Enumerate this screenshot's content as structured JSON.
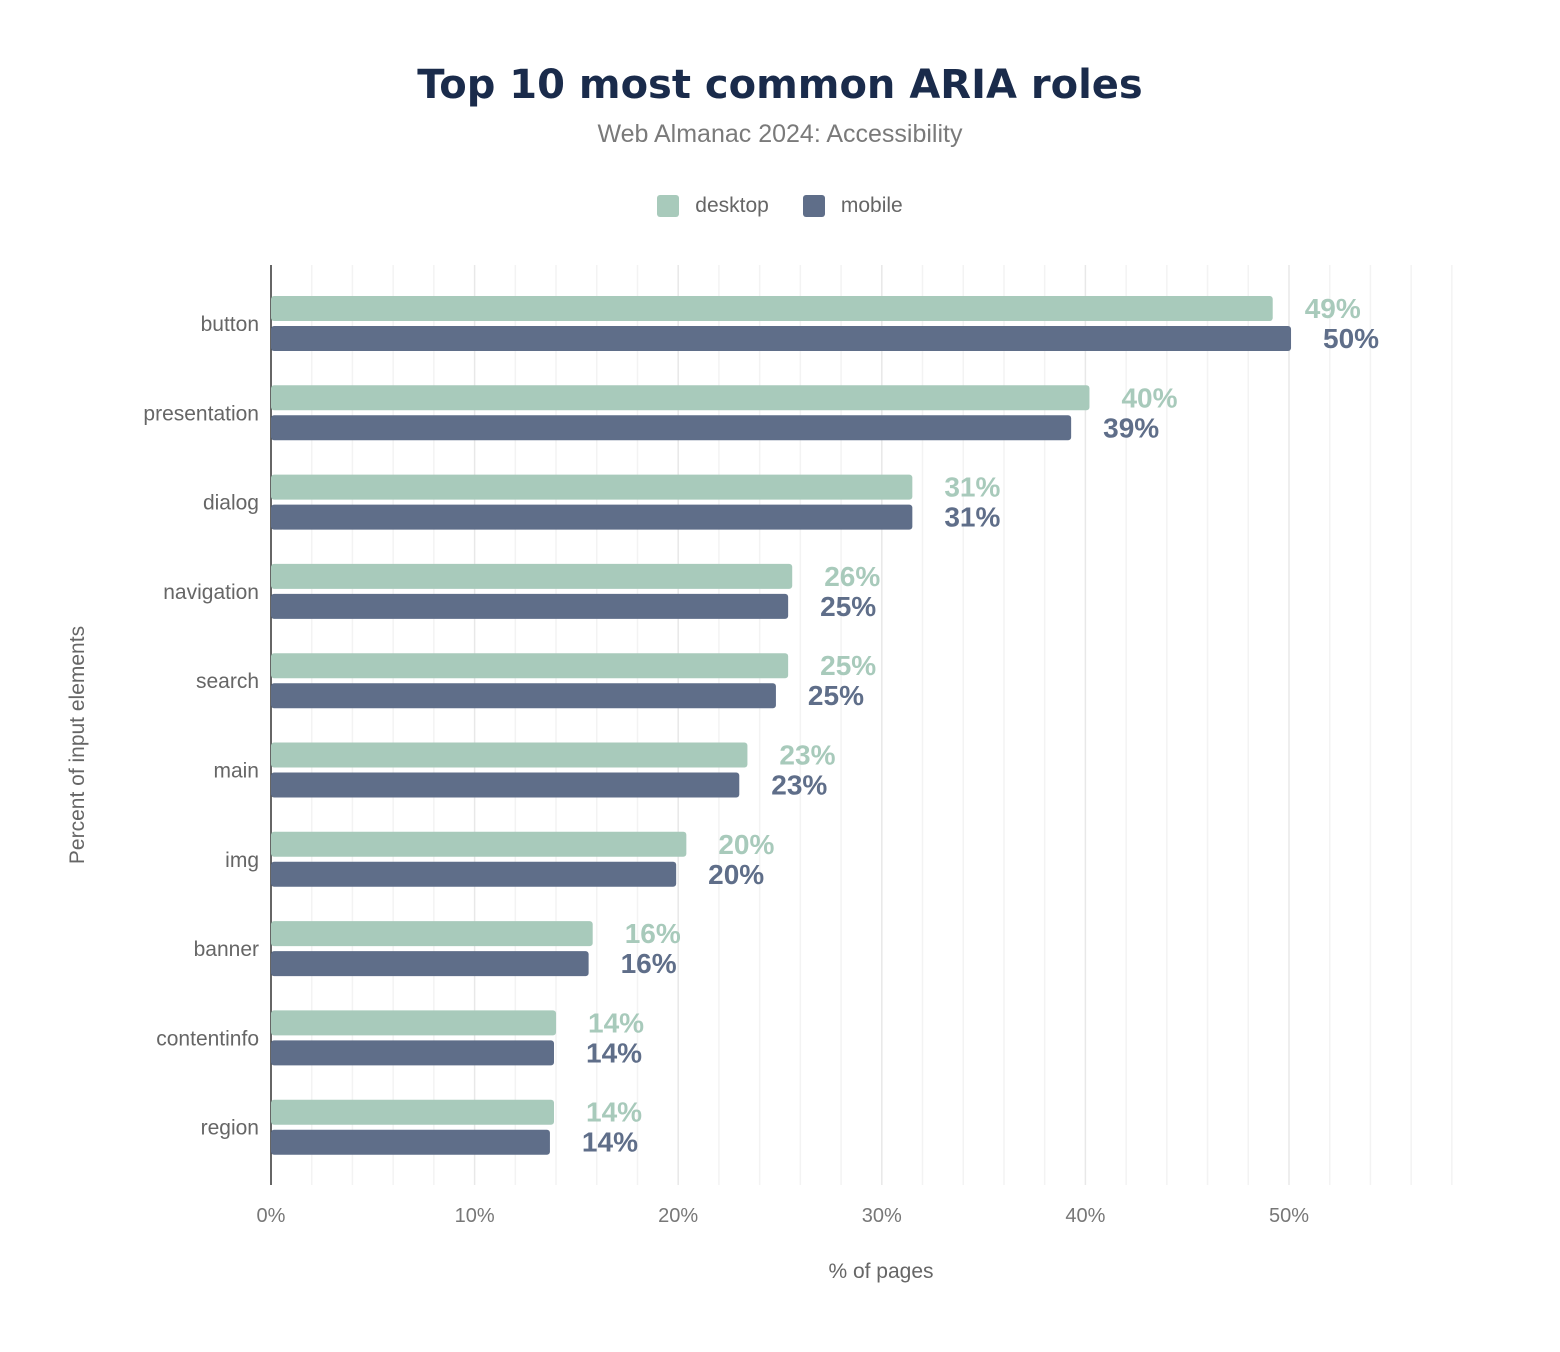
{
  "chart_data": {
    "type": "bar",
    "orientation": "horizontal",
    "title": "Top 10 most common ARIA roles",
    "subtitle": "Web Almanac 2024: Accessibility",
    "xlabel": "% of pages",
    "ylabel": "Percent of input elements",
    "xlim": [
      0,
      58
    ],
    "x_ticks": [
      "0%",
      "10%",
      "20%",
      "30%",
      "40%",
      "50%"
    ],
    "grid": true,
    "legend_position": "top-center",
    "categories": [
      "button",
      "presentation",
      "dialog",
      "navigation",
      "search",
      "main",
      "img",
      "banner",
      "contentinfo",
      "region"
    ],
    "series": [
      {
        "name": "desktop",
        "color": "#a8cabb",
        "values": [
          49.2,
          40.2,
          31.5,
          25.6,
          25.4,
          23.4,
          20.4,
          15.8,
          14.0,
          13.9
        ],
        "labels": [
          "49%",
          "40%",
          "31%",
          "26%",
          "25%",
          "23%",
          "20%",
          "16%",
          "14%",
          "14%"
        ]
      },
      {
        "name": "mobile",
        "color": "#5f6e89",
        "values": [
          50.1,
          39.3,
          31.5,
          25.4,
          24.8,
          23.0,
          19.9,
          15.6,
          13.9,
          13.7
        ],
        "labels": [
          "50%",
          "39%",
          "31%",
          "25%",
          "25%",
          "23%",
          "20%",
          "16%",
          "14%",
          "14%"
        ]
      }
    ]
  }
}
